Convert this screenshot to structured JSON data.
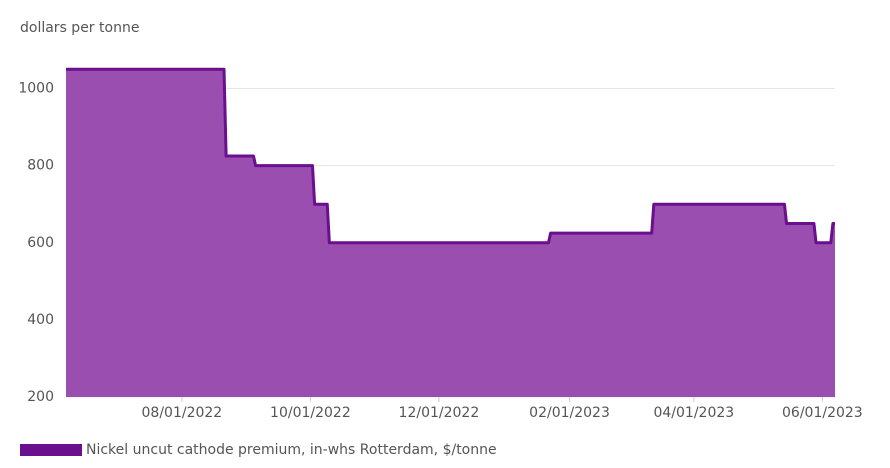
{
  "chart_data": {
    "type": "area",
    "y_label": "dollars per tonne",
    "x": [
      "06/07/2022",
      "08/21/2022",
      "08/22/2022",
      "09/04/2022",
      "09/05/2022",
      "10/02/2022",
      "10/03/2022",
      "10/09/2022",
      "10/10/2022",
      "01/22/2023",
      "01/23/2023",
      "03/12/2023",
      "03/13/2023",
      "05/14/2023",
      "05/15/2023",
      "05/28/2023",
      "05/29/2023",
      "06/05/2023",
      "06/06/2023",
      "06/07/2023"
    ],
    "series": [
      {
        "name": "Nickel uncut cathode premium, in-whs Rotterdam, $/tonne",
        "color": "#6a0f8e",
        "fill": "#9a4eaf",
        "values": [
          1050,
          1050,
          825,
          825,
          800,
          800,
          700,
          700,
          600,
          600,
          625,
          625,
          700,
          700,
          650,
          650,
          600,
          600,
          650,
          650
        ]
      }
    ],
    "xlim": [
      "06/07/2022",
      "06/07/2023"
    ],
    "xticks": [
      "08/01/2022",
      "10/01/2022",
      "12/01/2022",
      "02/01/2023",
      "04/01/2023",
      "06/01/2023"
    ],
    "ylim": [
      200,
      1100
    ],
    "yticks": [
      200,
      400,
      600,
      800,
      1000
    ],
    "grid": true,
    "legend": "bottom"
  }
}
